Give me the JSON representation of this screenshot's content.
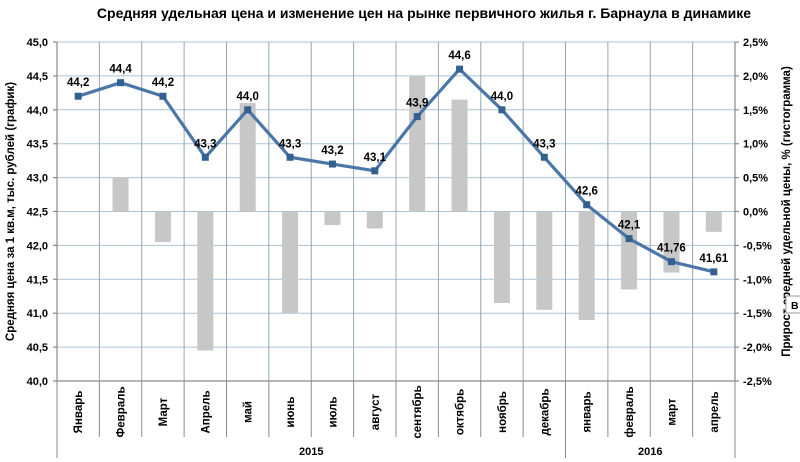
{
  "overlay": {
    "text": "В"
  },
  "chart_data": {
    "type": "combo-line-bar",
    "title": "Средняя удельная цена и изменение цен  на рынке первичного жилья г. Барнаула в динамике",
    "categories": [
      "Январь",
      "Февраль",
      "Март",
      "Апрель",
      "май",
      "июнь",
      "июль",
      "август",
      "сентябрь",
      "октябрь",
      "ноябрь",
      "декабрь",
      "январь",
      "февраль",
      "март",
      "апрель"
    ],
    "year_groups": [
      {
        "label": "2015",
        "start": 0,
        "span": 12
      },
      {
        "label": "2016",
        "start": 12,
        "span": 4
      }
    ],
    "line": {
      "name": "Средняя цена за 1 кв.м, тыс. рублей",
      "values": [
        44.2,
        44.4,
        44.2,
        43.3,
        44.0,
        43.3,
        43.2,
        43.1,
        43.9,
        44.6,
        44.0,
        43.3,
        42.6,
        42.1,
        41.76,
        41.61
      ],
      "labels": [
        "44,2",
        "44,4",
        "44,2",
        "43,3",
        "44,0",
        "43,3",
        "43,2",
        "43,1",
        "43,9",
        "44,6",
        "44,0",
        "43,3",
        "42,6",
        "42,1",
        "41,76",
        "41,61"
      ]
    },
    "bars": {
      "name": "Прирост средней удельной цены, %",
      "values": [
        null,
        0.5,
        -0.45,
        -2.05,
        1.6,
        -1.5,
        -0.2,
        -0.25,
        2.0,
        1.65,
        -1.35,
        -1.45,
        -1.6,
        -1.15,
        -0.9,
        -0.3
      ]
    },
    "left_axis": {
      "label": "Средняя цена за 1 кв.м, тыс. рублей (график)",
      "min": 40.0,
      "max": 45.0,
      "step": 0.5,
      "ticks": [
        "45,0",
        "44,5",
        "44,0",
        "43,5",
        "43,0",
        "42,5",
        "42,0",
        "41,5",
        "41,0",
        "40,5",
        "40,0"
      ]
    },
    "right_axis": {
      "label": "Прирост средней удельной цены, % (гистограмма)",
      "min": -2.5,
      "max": 2.5,
      "step": 0.5,
      "ticks": [
        "2,5%",
        "2,0%",
        "1,5%",
        "1,0%",
        "0,5%",
        "0,0%",
        "-0,5%",
        "-1,0%",
        "-1,5%",
        "-2,0%",
        "-2,5%"
      ]
    },
    "grid": true,
    "legend": "none",
    "colors": {
      "line": "#4A76A8",
      "marker": "#32608F",
      "bar": "#C7C7C7",
      "hgrid": "#A9C4D6",
      "vgrid": "#94A6B5",
      "axis": "#8A8A8A",
      "text": "#000000",
      "background": "#FFFFFF"
    }
  }
}
